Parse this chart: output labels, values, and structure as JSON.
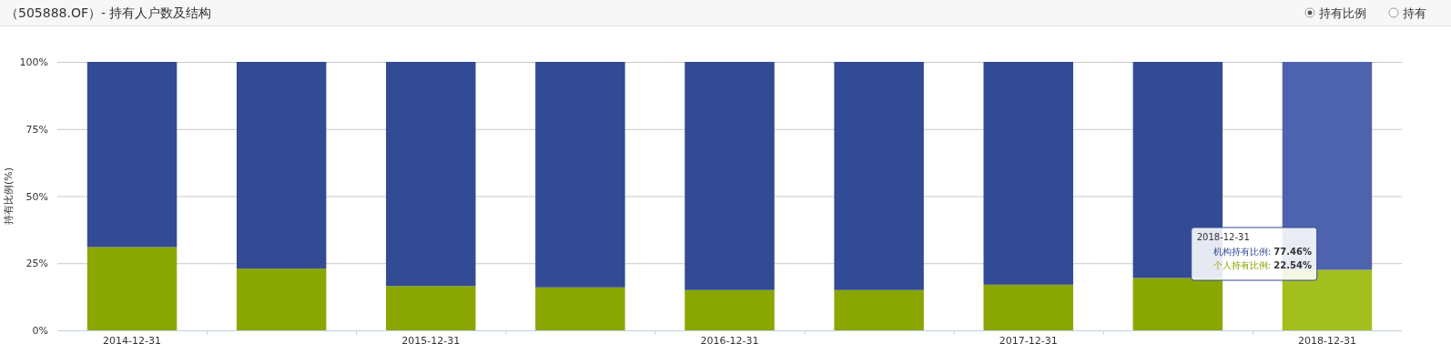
{
  "chart_data": {
    "type": "bar",
    "title": "（505888.OF）- 持有人户数及结构",
    "ylabel": "持有比例(%)",
    "categories": [
      "2014-12-31",
      null,
      "2015-12-31",
      null,
      "2016-12-31",
      null,
      "2017-12-31",
      null,
      "2018-12-31"
    ],
    "stacked": true,
    "series": [
      {
        "name": "个人持有比例:",
        "color": "#8aa600",
        "colors": [
          "#8aa600",
          "#8aa600",
          "#8aa600",
          "#8aa600",
          "#8aa600",
          "#8aa600",
          "#8aa600",
          "#8aa600",
          "#a3bf1d"
        ],
        "values": [
          31,
          23,
          16.5,
          16,
          15,
          15,
          17,
          19.5,
          22.54
        ],
        "value_labels": [
          null,
          null,
          null,
          null,
          null,
          null,
          null,
          null,
          "22.54%"
        ]
      },
      {
        "name": "机构持有比例:",
        "color": "#334a94",
        "colors": [
          "#334a94",
          "#334a94",
          "#334a94",
          "#334a94",
          "#334a94",
          "#334a94",
          "#334a94",
          "#334a94",
          "#4d63ae"
        ],
        "values": [
          69,
          77,
          83.5,
          84,
          85,
          85,
          83,
          80.5,
          77.46
        ],
        "value_labels": [
          null,
          null,
          null,
          null,
          null,
          null,
          null,
          null,
          "77.46%"
        ]
      }
    ],
    "ylim": [
      0,
      100
    ],
    "yticks": [
      {
        "value": 0,
        "label": "0%"
      },
      {
        "value": 25,
        "label": "25%"
      },
      {
        "value": 50,
        "label": "50%"
      },
      {
        "value": 75,
        "label": "75%"
      },
      {
        "value": 100,
        "label": "100%"
      }
    ],
    "grid": "y",
    "annotations": [
      "持有比例",
      "持有"
    ]
  }
}
